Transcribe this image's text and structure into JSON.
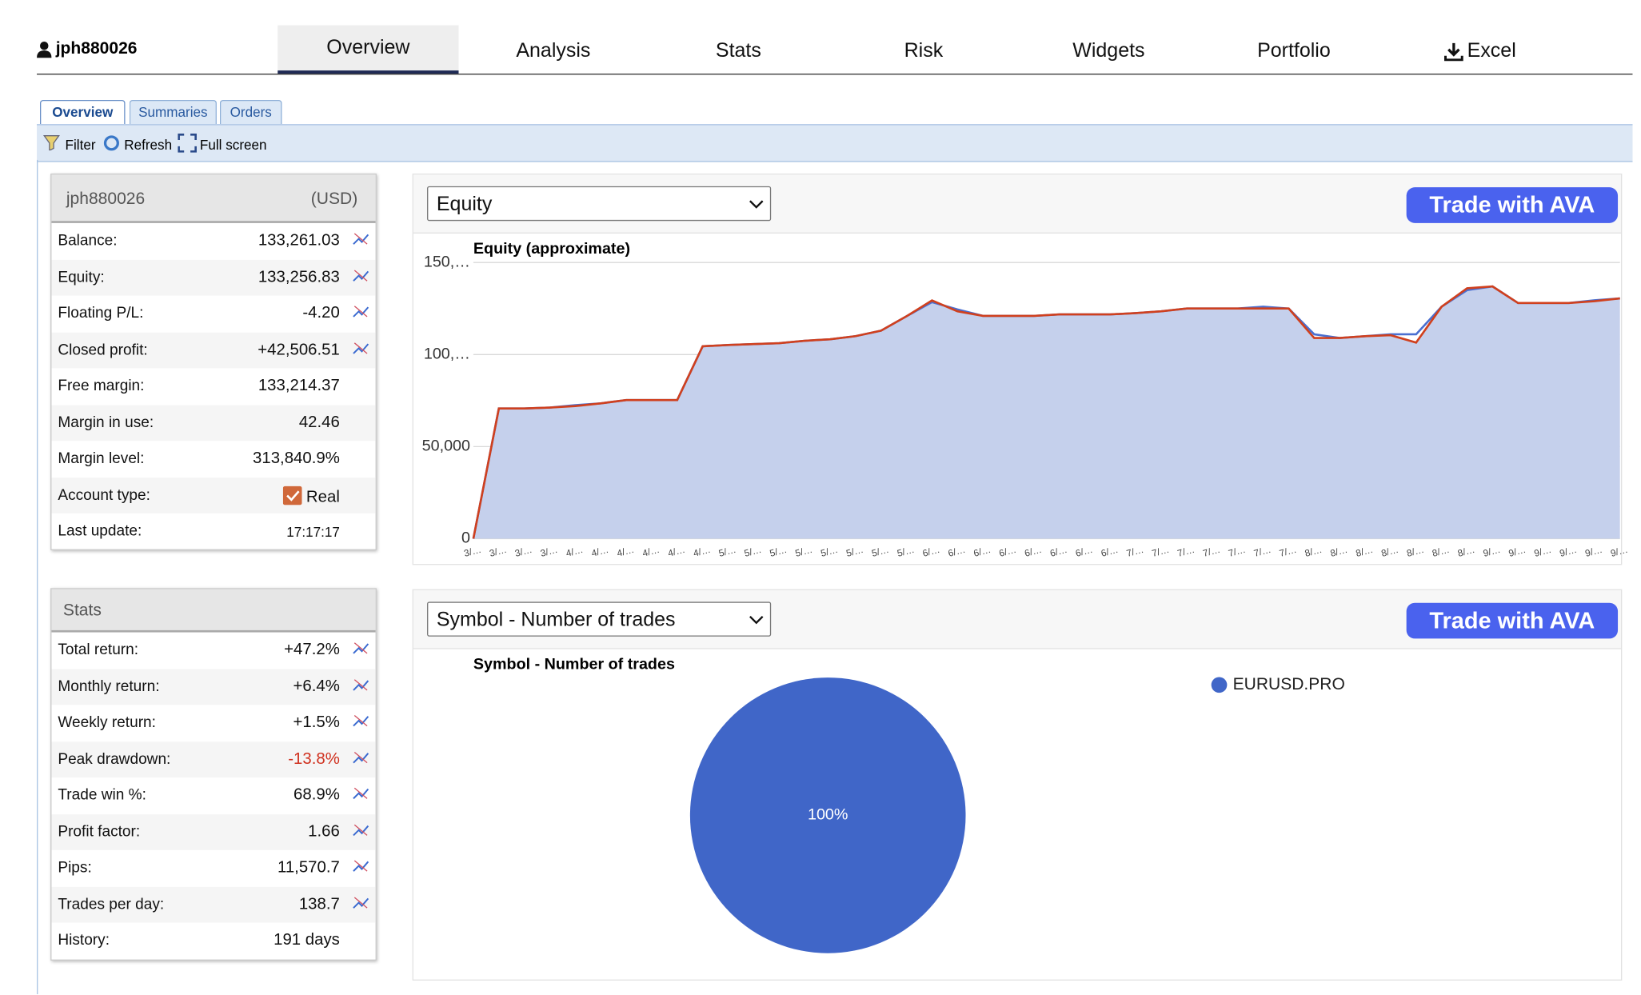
{
  "nav": {
    "user": "jph880026",
    "tabs": [
      "Overview",
      "Analysis",
      "Stats",
      "Risk",
      "Widgets",
      "Portfolio",
      "Excel"
    ]
  },
  "subtabs": [
    "Overview",
    "Summaries",
    "Orders"
  ],
  "toolbar": [
    "Filter",
    "Refresh",
    "Full screen"
  ],
  "account": {
    "name": "jph880026",
    "currency": "(USD)",
    "rows": [
      [
        "Balance:",
        "133,261.03"
      ],
      [
        "Equity:",
        "133,256.83"
      ],
      [
        "Floating P/L:",
        "-4.20"
      ],
      [
        "Closed profit:",
        "+42,506.51"
      ],
      [
        "Free margin:",
        "133,214.37"
      ],
      [
        "Margin in use:",
        "42.46"
      ],
      [
        "Margin level:",
        "313,840.9%"
      ],
      [
        "Account type:",
        "Real"
      ],
      [
        "Last update:",
        "17:17:17"
      ]
    ]
  },
  "stats": {
    "title": "Stats",
    "rows": [
      [
        "Total return:",
        "+47.2%"
      ],
      [
        "Monthly return:",
        "+6.4%"
      ],
      [
        "Weekly return:",
        "+1.5%"
      ],
      [
        "Peak drawdown:",
        "-13.8%"
      ],
      [
        "Trade win %:",
        "68.9%"
      ],
      [
        "Profit factor:",
        "1.66"
      ],
      [
        "Pips:",
        "11,570.7"
      ],
      [
        "Trades per day:",
        "138.7"
      ],
      [
        "History:",
        "191 days"
      ]
    ]
  },
  "equity_panel": {
    "select": "Equity",
    "ad": "Trade with AVA"
  },
  "symbol_panel": {
    "select": "Symbol - Number of trades",
    "ad": "Trade with AVA"
  },
  "chart_data": [
    {
      "type": "line",
      "title": "Equity (approximate)",
      "categories": [
        "3/…",
        "3/…",
        "3/…",
        "3/…",
        "4/…",
        "4/…",
        "4/…",
        "4/…",
        "4/…",
        "4/…",
        "5/…",
        "5/…",
        "5/…",
        "5/…",
        "5/…",
        "5/…",
        "5/…",
        "5/…",
        "6/…",
        "6/…",
        "6/…",
        "6/…",
        "6/…",
        "6/…",
        "6/…",
        "6/…",
        "7/…",
        "7/…",
        "7/…",
        "7/…",
        "7/…",
        "7/…",
        "7/…",
        "8/…",
        "8/…",
        "8/…",
        "8/…",
        "8/…",
        "8/…",
        "8/…",
        "9/…",
        "9/…",
        "9/…",
        "9/…",
        "9/…",
        "9/…"
      ],
      "series": [
        {
          "color": "#4a6fd0",
          "values": [
            0,
            70700,
            70700,
            71200,
            72500,
            73500,
            75300,
            75300,
            75300,
            104500,
            105200,
            105700,
            106200,
            107500,
            108300,
            110000,
            113000,
            120800,
            128500,
            124500,
            121000,
            121000,
            121000,
            121800,
            121800,
            121800,
            122500,
            123500,
            125000,
            125000,
            125000,
            126000,
            125000,
            111000,
            109000,
            110000,
            111000,
            111000,
            126000,
            135000,
            137000,
            128000,
            128000,
            128000,
            129500,
            130500
          ]
        },
        {
          "color": "#d0401e",
          "values": [
            0,
            70700,
            70700,
            71200,
            72000,
            73500,
            75300,
            75300,
            75300,
            104500,
            105200,
            105700,
            106200,
            107500,
            108300,
            110000,
            113000,
            120800,
            129400,
            123500,
            121000,
            121000,
            121000,
            121800,
            121800,
            121800,
            122500,
            123500,
            125000,
            125000,
            125000,
            125000,
            125000,
            109000,
            109000,
            110000,
            110500,
            106500,
            126000,
            136000,
            137000,
            128000,
            128000,
            128000,
            129000,
            130500
          ]
        }
      ],
      "area_color": "#c5d0ec",
      "ylim": [
        0,
        150000
      ],
      "yticks": [
        0,
        {
          "value": 50000,
          "label": "50,000"
        },
        {
          "value": 100000,
          "label": "100,…"
        },
        {
          "value": 150000,
          "label": "150,…"
        }
      ],
      "grid": true
    },
    {
      "type": "pie",
      "title": "Symbol - Number of trades",
      "categories": [
        "EURUSD.PRO"
      ],
      "values": [
        100
      ],
      "value_labels": [
        "100%"
      ],
      "colors": [
        "#4066c8"
      ],
      "legend": "top-right"
    }
  ]
}
